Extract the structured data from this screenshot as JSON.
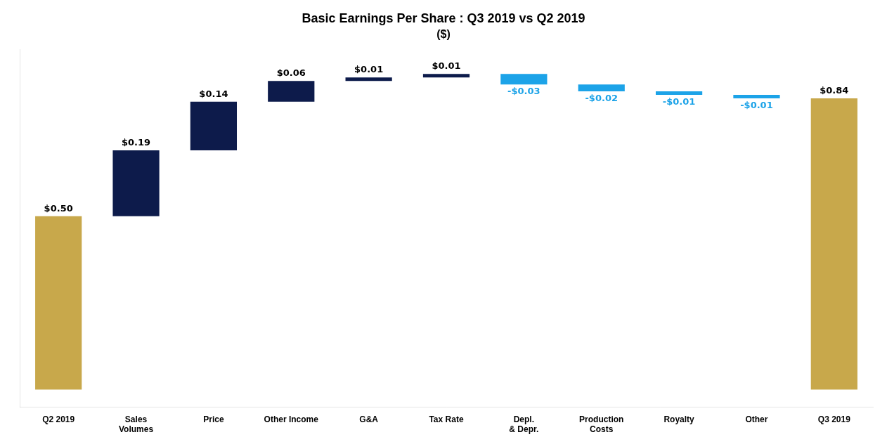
{
  "chart_data": {
    "type": "waterfall",
    "title": "Basic Earnings Per Share : Q3 2019 vs Q2 2019",
    "subtitle": "($)",
    "categories": [
      "Q2 2019",
      "Sales Volumes",
      "Price",
      "Other Income",
      "G&A",
      "Tax Rate",
      "Depl. & Depr.",
      "Production Costs",
      "Royalty",
      "Other",
      "Q3 2019"
    ],
    "values": [
      0.5,
      0.19,
      0.14,
      0.06,
      0.01,
      0.01,
      -0.03,
      -0.02,
      -0.01,
      -0.01,
      0.84
    ],
    "value_labels": [
      "$0.50",
      "$0.19",
      "$0.14",
      "$0.06",
      "$0.01",
      "$0.01",
      "-$0.03",
      "-$0.02",
      "-$0.01",
      "-$0.01",
      "$0.84"
    ],
    "colors": [
      "#C8A84B",
      "#0D1B4B",
      "#0D1B4B",
      "#0D1B4B",
      "#0D1B4B",
      "#0D1B4B",
      "#1CA3E8",
      "#1CA3E8",
      "#1CA3E8",
      "#1CA3E8",
      "#C8A84B"
    ],
    "ylim": [
      -0.05,
      0.98
    ],
    "grid": false,
    "data_labels": true,
    "tick_labels": "x"
  }
}
